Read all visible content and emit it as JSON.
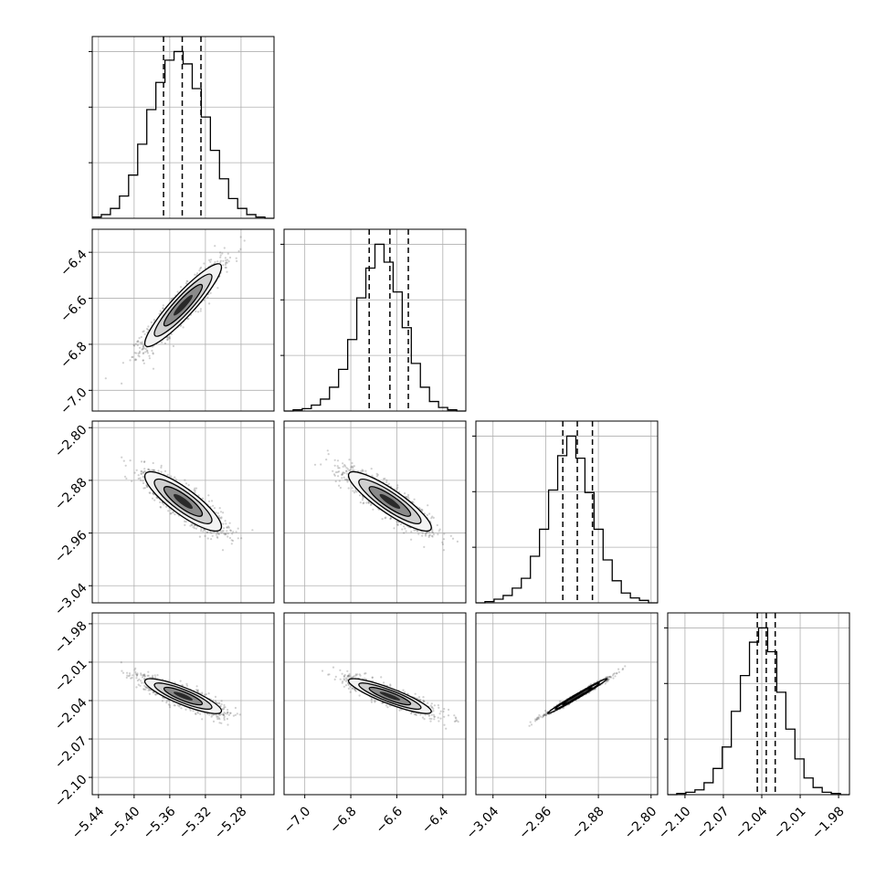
{
  "chart_data": {
    "type": "corner",
    "grid": true,
    "colors": {
      "ink": "#000000",
      "grid": "#b0b0b0",
      "points": "#555555",
      "background": "#ffffff"
    },
    "parameters": [
      {
        "index": 0,
        "mean": -5.345,
        "sd": 0.0215,
        "quantiles": [
          -5.367,
          -5.346,
          -5.325
        ],
        "range": [
          -5.447,
          -5.243
        ],
        "ticks": [
          -5.44,
          -5.4,
          -5.36,
          -5.32,
          -5.28
        ],
        "tick_labels": [
          "−5.44",
          "−5.40",
          "−5.36",
          "−5.32",
          "−5.28"
        ]
      },
      {
        "index": 1,
        "mean": -6.63,
        "sd": 0.09,
        "quantiles": [
          -6.72,
          -6.63,
          -6.55
        ],
        "range": [
          -7.09,
          -6.3
        ],
        "ticks": [
          -7.0,
          -6.8,
          -6.6,
          -6.4
        ],
        "tick_labels": [
          "−7.0",
          "−6.8",
          "−6.6",
          "−6.4"
        ]
      },
      {
        "index": 2,
        "mean": -2.912,
        "sd": 0.0225,
        "quantiles": [
          -2.934,
          -2.912,
          -2.889
        ],
        "range": [
          -3.066,
          -2.79
        ],
        "ticks": [
          -3.04,
          -2.96,
          -2.88,
          -2.8
        ],
        "tick_labels": [
          "−3.04",
          "−2.96",
          "−2.88",
          "−2.80"
        ]
      },
      {
        "index": 3,
        "mean": -2.0365,
        "sd": 0.0068,
        "quantiles": [
          -2.0435,
          -2.0365,
          -2.0295
        ],
        "range": [
          -2.1135,
          -1.9715
        ],
        "ticks": [
          -2.1,
          -2.07,
          -2.04,
          -2.01,
          -1.98
        ],
        "tick_labels": [
          "−2.10",
          "−2.07",
          "−2.04",
          "−2.01",
          "−1.98"
        ]
      }
    ],
    "correlations": [
      {
        "pair": [
          1,
          0
        ],
        "rho": 0.92
      },
      {
        "pair": [
          2,
          0
        ],
        "rho": -0.85
      },
      {
        "pair": [
          2,
          1
        ],
        "rho": -0.88
      },
      {
        "pair": [
          3,
          0
        ],
        "rho": -0.85
      },
      {
        "pair": [
          3,
          1
        ],
        "rho": -0.88
      },
      {
        "pair": [
          3,
          2
        ],
        "rho": 0.99
      }
    ],
    "histograms": [
      {
        "param": 0,
        "bins": 20,
        "counts": [
          1,
          3,
          8,
          18,
          35,
          60,
          88,
          110,
          128,
          135,
          125,
          105,
          82,
          55,
          32,
          16,
          8,
          3,
          1,
          0
        ]
      },
      {
        "param": 1,
        "bins": 20,
        "counts": [
          0,
          1,
          2,
          5,
          10,
          20,
          35,
          60,
          95,
          120,
          140,
          125,
          100,
          70,
          40,
          20,
          8,
          3,
          1,
          0
        ]
      },
      {
        "param": 2,
        "bins": 20,
        "counts": [
          0,
          1,
          3,
          6,
          12,
          20,
          38,
          60,
          92,
          120,
          136,
          118,
          90,
          60,
          35,
          18,
          8,
          4,
          2,
          0
        ]
      },
      {
        "param": 3,
        "bins": 20,
        "counts": [
          0,
          1,
          2,
          4,
          10,
          22,
          40,
          70,
          100,
          128,
          140,
          120,
          86,
          55,
          30,
          14,
          6,
          2,
          1,
          0
        ]
      }
    ]
  }
}
